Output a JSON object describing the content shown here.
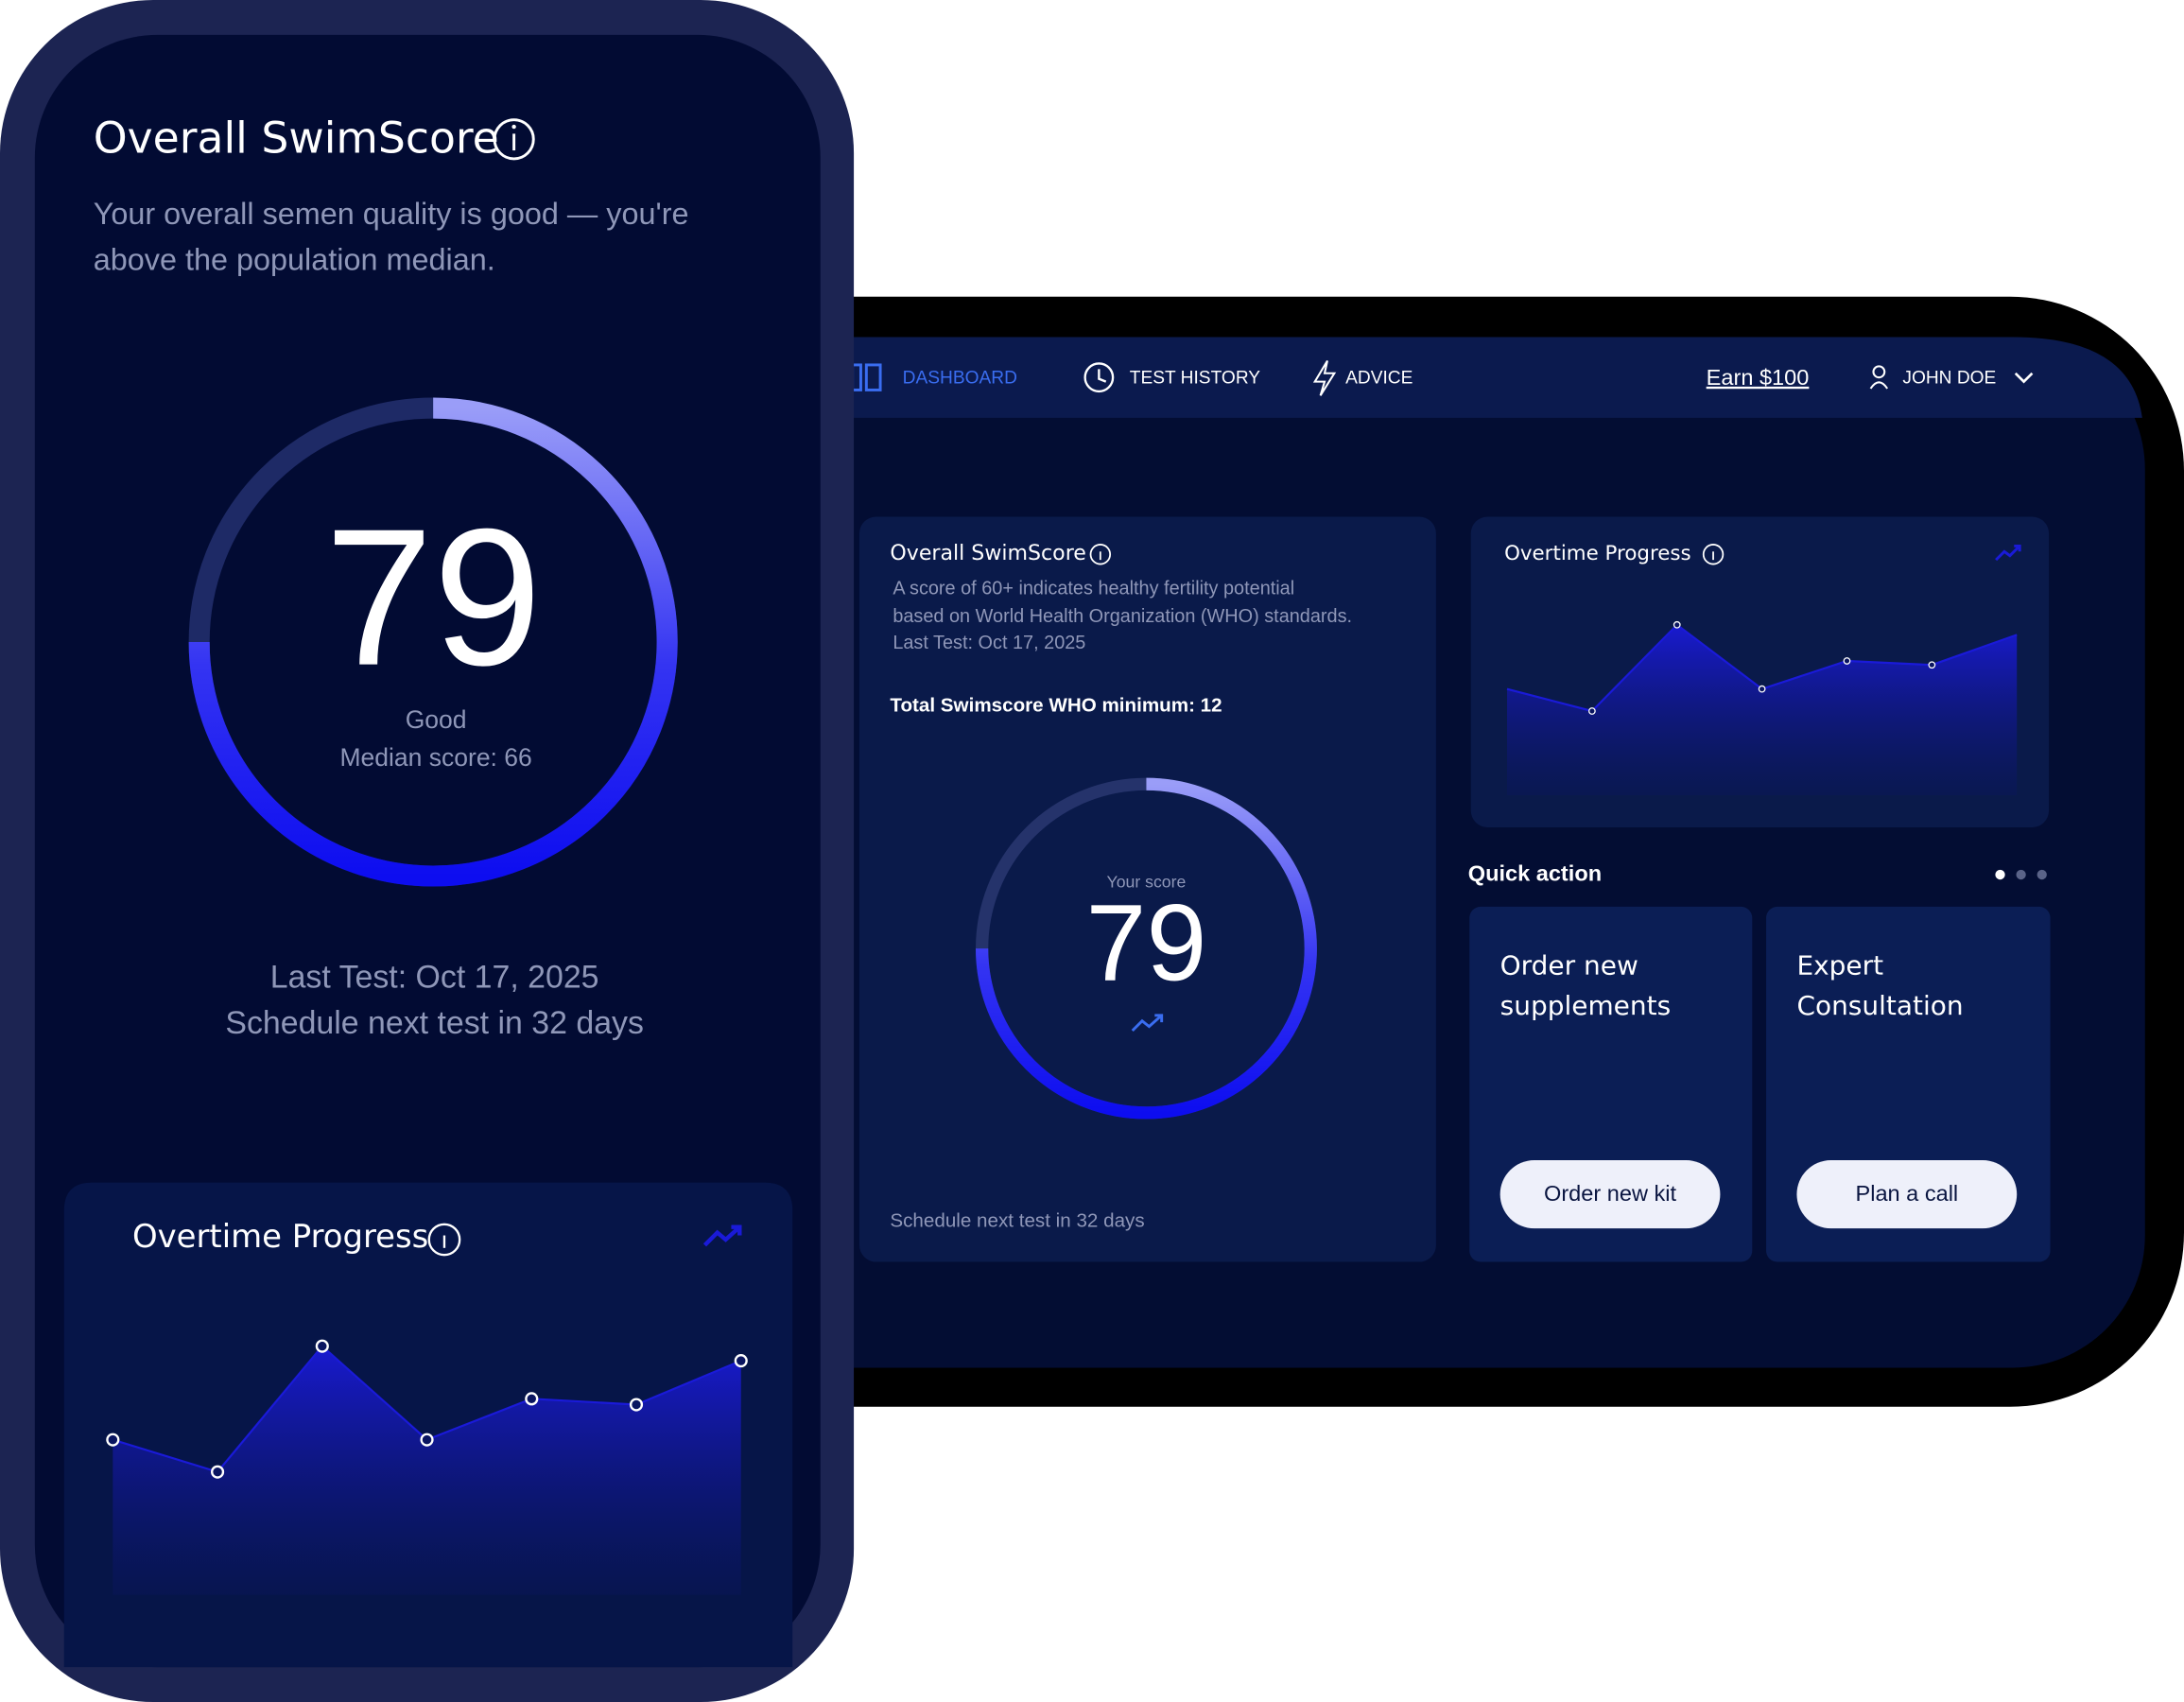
{
  "phone": {
    "title": "Overall SwimScore",
    "description": [
      "Your overall semen quality is good — you're",
      "above the population median."
    ],
    "score": 79,
    "rating": "Good",
    "median": "Median score: 66",
    "last_test": "Last Test: Oct 17, 2025",
    "schedule": "Schedule next test in 32 days",
    "progress_title": "Overtime Progress"
  },
  "tablet": {
    "nav": [
      "DASHBOARD",
      "TEST HISTORY",
      "ADVICE"
    ],
    "earn": "Earn $100",
    "user": "JOHN DOE",
    "score_card": {
      "title": "Overall SwimScore",
      "description": [
        "A score of 60+ indicates healthy fertility potential",
        "based on World Health Organization (WHO) standards.",
        "Last Test: Oct 17, 2025"
      ],
      "minimum": "Total Swimscore WHO minimum: 12",
      "score_label": "Your score",
      "score": 79,
      "schedule": "Schedule next test in 32 days"
    },
    "progress_title": "Overtime Progress",
    "quick_action": "Quick action",
    "actions": [
      {
        "title": [
          "Order new",
          "supplements"
        ],
        "button": "Order new kit"
      },
      {
        "title": [
          "Expert",
          "Consultation"
        ],
        "button": "Plan a call"
      }
    ]
  },
  "chart_data": {
    "type": "area",
    "categories": [
      null,
      null,
      null,
      null,
      null,
      null,
      null
    ],
    "values": [
      53,
      42,
      85,
      53,
      67,
      65,
      80
    ],
    "ylim": [
      0,
      100
    ],
    "color": "#1a1ad8"
  }
}
